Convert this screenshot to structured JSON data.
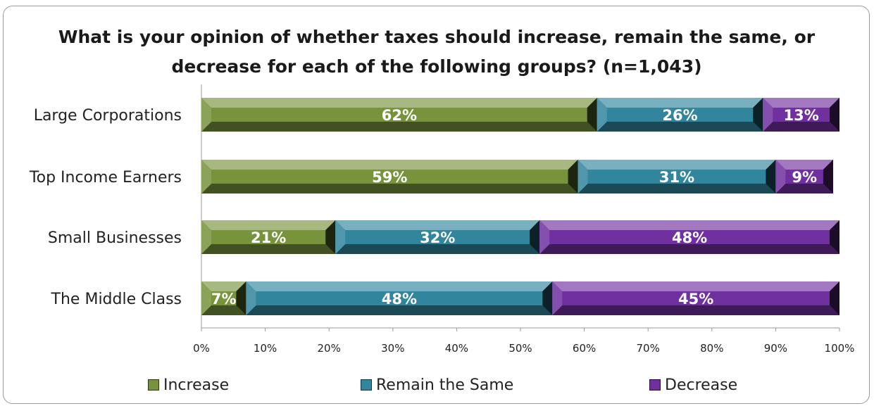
{
  "chart_data": {
    "type": "bar",
    "orientation": "horizontal",
    "stacked": true,
    "title_lines": [
      "What is your opinion of whether taxes should increase, remain the same, or",
      "decrease for each of the following groups? (n=1,043)"
    ],
    "categories": [
      "Large Corporations",
      "Top Income Earners",
      "Small Businesses",
      "The Middle Class"
    ],
    "series": [
      {
        "name": "Increase",
        "values": [
          62,
          59,
          21,
          7
        ],
        "labels": [
          "62%",
          "59%",
          "21%",
          "7%"
        ],
        "color": "#77933c"
      },
      {
        "name": "Remain the Same",
        "values": [
          26,
          31,
          32,
          48
        ],
        "labels": [
          "26%",
          "31%",
          "32%",
          "48%"
        ],
        "color": "#31859c"
      },
      {
        "name": "Decrease",
        "values": [
          13,
          9,
          48,
          45
        ],
        "labels": [
          "13%",
          "9%",
          "48%",
          "45%"
        ],
        "color": "#7030a0"
      }
    ],
    "xlim": [
      0,
      100
    ],
    "xticks": [
      "0%",
      "10%",
      "20%",
      "30%",
      "40%",
      "50%",
      "60%",
      "70%",
      "80%",
      "90%",
      "100%"
    ],
    "grid": false,
    "legend_position": "bottom"
  }
}
